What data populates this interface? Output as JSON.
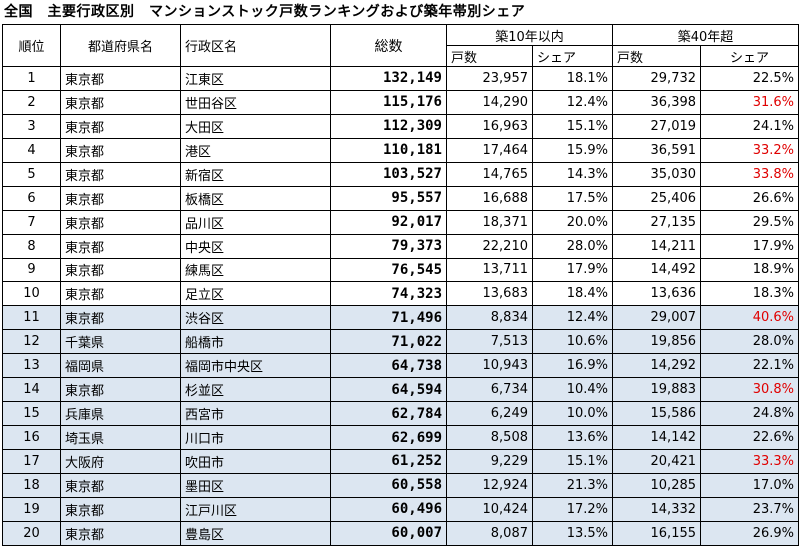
{
  "title": "全国　主要行政区別　マンションストック戸数ランキングおよび築年帯別シェア",
  "headers": {
    "rank": "順位",
    "prefecture": "都道府県名",
    "city": "行政区名",
    "total": "総数",
    "group_recent": "築10年以内",
    "group_old": "築40年超",
    "units": "戸数",
    "share": "シェア"
  },
  "rows": [
    {
      "rank": "1",
      "prefecture": "東京都",
      "city": "江東区",
      "total": "132,149",
      "recent_units": "23,957",
      "recent_share": "18.1%",
      "old_units": "29,732",
      "old_share": "22.5%",
      "old_share_highlight": false
    },
    {
      "rank": "2",
      "prefecture": "東京都",
      "city": "世田谷区",
      "total": "115,176",
      "recent_units": "14,290",
      "recent_share": "12.4%",
      "old_units": "36,398",
      "old_share": "31.6%",
      "old_share_highlight": true
    },
    {
      "rank": "3",
      "prefecture": "東京都",
      "city": "大田区",
      "total": "112,309",
      "recent_units": "16,963",
      "recent_share": "15.1%",
      "old_units": "27,019",
      "old_share": "24.1%",
      "old_share_highlight": false
    },
    {
      "rank": "4",
      "prefecture": "東京都",
      "city": "港区",
      "total": "110,181",
      "recent_units": "17,464",
      "recent_share": "15.9%",
      "old_units": "36,591",
      "old_share": "33.2%",
      "old_share_highlight": true
    },
    {
      "rank": "5",
      "prefecture": "東京都",
      "city": "新宿区",
      "total": "103,527",
      "recent_units": "14,765",
      "recent_share": "14.3%",
      "old_units": "35,030",
      "old_share": "33.8%",
      "old_share_highlight": true
    },
    {
      "rank": "6",
      "prefecture": "東京都",
      "city": "板橋区",
      "total": "95,557",
      "recent_units": "16,688",
      "recent_share": "17.5%",
      "old_units": "25,406",
      "old_share": "26.6%",
      "old_share_highlight": false
    },
    {
      "rank": "7",
      "prefecture": "東京都",
      "city": "品川区",
      "total": "92,017",
      "recent_units": "18,371",
      "recent_share": "20.0%",
      "old_units": "27,135",
      "old_share": "29.5%",
      "old_share_highlight": false
    },
    {
      "rank": "8",
      "prefecture": "東京都",
      "city": "中央区",
      "total": "79,373",
      "recent_units": "22,210",
      "recent_share": "28.0%",
      "old_units": "14,211",
      "old_share": "17.9%",
      "old_share_highlight": false
    },
    {
      "rank": "9",
      "prefecture": "東京都",
      "city": "練馬区",
      "total": "76,545",
      "recent_units": "13,711",
      "recent_share": "17.9%",
      "old_units": "14,492",
      "old_share": "18.9%",
      "old_share_highlight": false
    },
    {
      "rank": "10",
      "prefecture": "東京都",
      "city": "足立区",
      "total": "74,323",
      "recent_units": "13,683",
      "recent_share": "18.4%",
      "old_units": "13,636",
      "old_share": "18.3%",
      "old_share_highlight": false
    },
    {
      "rank": "11",
      "prefecture": "東京都",
      "city": "渋谷区",
      "total": "71,496",
      "recent_units": "8,834",
      "recent_share": "12.4%",
      "old_units": "29,007",
      "old_share": "40.6%",
      "old_share_highlight": true
    },
    {
      "rank": "12",
      "prefecture": "千葉県",
      "city": "船橋市",
      "total": "71,022",
      "recent_units": "7,513",
      "recent_share": "10.6%",
      "old_units": "19,856",
      "old_share": "28.0%",
      "old_share_highlight": false
    },
    {
      "rank": "13",
      "prefecture": "福岡県",
      "city": "福岡市中央区",
      "total": "64,738",
      "recent_units": "10,943",
      "recent_share": "16.9%",
      "old_units": "14,292",
      "old_share": "22.1%",
      "old_share_highlight": false
    },
    {
      "rank": "14",
      "prefecture": "東京都",
      "city": "杉並区",
      "total": "64,594",
      "recent_units": "6,734",
      "recent_share": "10.4%",
      "old_units": "19,883",
      "old_share": "30.8%",
      "old_share_highlight": true
    },
    {
      "rank": "15",
      "prefecture": "兵庫県",
      "city": "西宮市",
      "total": "62,784",
      "recent_units": "6,249",
      "recent_share": "10.0%",
      "old_units": "15,586",
      "old_share": "24.8%",
      "old_share_highlight": false
    },
    {
      "rank": "16",
      "prefecture": "埼玉県",
      "city": "川口市",
      "total": "62,699",
      "recent_units": "8,508",
      "recent_share": "13.6%",
      "old_units": "14,142",
      "old_share": "22.6%",
      "old_share_highlight": false
    },
    {
      "rank": "17",
      "prefecture": "大阪府",
      "city": "吹田市",
      "total": "61,252",
      "recent_units": "9,229",
      "recent_share": "15.1%",
      "old_units": "20,421",
      "old_share": "33.3%",
      "old_share_highlight": true
    },
    {
      "rank": "18",
      "prefecture": "東京都",
      "city": "墨田区",
      "total": "60,558",
      "recent_units": "12,924",
      "recent_share": "21.3%",
      "old_units": "10,285",
      "old_share": "17.0%",
      "old_share_highlight": false
    },
    {
      "rank": "19",
      "prefecture": "東京都",
      "city": "江戸川区",
      "total": "60,496",
      "recent_units": "10,424",
      "recent_share": "17.2%",
      "old_units": "14,332",
      "old_share": "23.7%",
      "old_share_highlight": false
    },
    {
      "rank": "20",
      "prefecture": "東京都",
      "city": "豊島区",
      "total": "60,007",
      "recent_units": "8,087",
      "recent_share": "13.5%",
      "old_units": "16,155",
      "old_share": "26.9%",
      "old_share_highlight": false
    }
  ],
  "shaded_rows_from_rank": 11,
  "colors": {
    "shade": "#dce6f1",
    "highlight": "#e00000",
    "border": "#000000"
  }
}
